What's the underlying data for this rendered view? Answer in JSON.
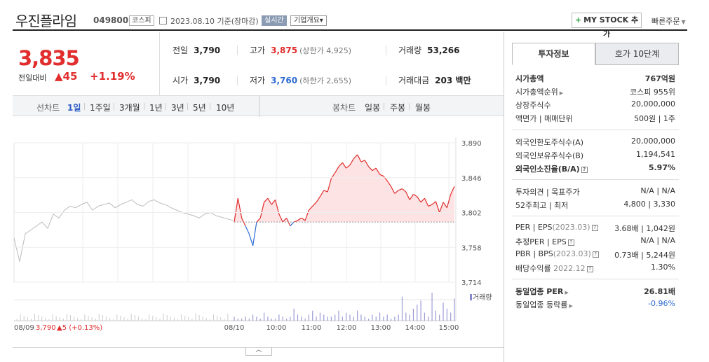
{
  "header": {
    "stock_name": "우진플라임",
    "stock_code": "049800",
    "market": "코스피",
    "date_label": "2023.08.10 기준(장마감)",
    "realtime_label": "실시간",
    "overview_label": "기업개요▾",
    "mystock_label": "MY STOCK 추가",
    "mystock_plus": "+",
    "quick_order_label": "빠른주문",
    "quick_order_caret": "▼"
  },
  "price": {
    "current": "3,835",
    "prev_label": "전일대비",
    "change": "▲45",
    "change_pct": "+1.19%"
  },
  "stats": {
    "prev_close_label": "전일",
    "prev_close": "3,790",
    "high_label": "고가",
    "high": "3,875",
    "upper_limit": "(상한가 4,925)",
    "volume_label": "거래량",
    "volume": "53,266",
    "open_label": "시가",
    "open": "3,790",
    "low_label": "저가",
    "low": "3,760",
    "lower_limit": "(하한가 2,655)",
    "amount_label": "거래대금",
    "amount": "203 백만"
  },
  "toolbar": {
    "line_label": "선차트",
    "periods": [
      "1일",
      "1주일",
      "3개월",
      "1년",
      "3년",
      "5년",
      "10년"
    ],
    "selected_period": "1일",
    "candle_label": "봉차트",
    "candle_periods": [
      "일봉",
      "주봉",
      "월봉"
    ]
  },
  "chart_data": {
    "type": "line",
    "ylabels": [
      "3,890",
      "3,846",
      "3,802",
      "3,758",
      "3,714"
    ],
    "ylim": [
      3714,
      3890
    ],
    "baseline": 3790,
    "xlabels": [
      "08/10",
      "10:00",
      "11:00",
      "12:00",
      "13:00",
      "14:00",
      "15:00"
    ],
    "prev_day_label": "08/09",
    "prev_day_price": "3,790",
    "prev_day_change": "▲5 (+0.13%)",
    "volume_label": "거래량",
    "prev_series_color": "#bbbbbb",
    "up_color": "#e12d2d",
    "down_color": "#2e6bd1",
    "prev_day_values": [
      3770,
      3740,
      3775,
      3780,
      3785,
      3790,
      3782,
      3800,
      3795,
      3805,
      3810,
      3808,
      3812,
      3815,
      3805,
      3810,
      3812,
      3814,
      3808,
      3812,
      3815,
      3818,
      3812,
      3810,
      3816,
      3818,
      3814,
      3812,
      3808,
      3805,
      3802,
      3800,
      3798,
      3795,
      3800,
      3802,
      3798,
      3796,
      3794,
      3792
    ],
    "today_values": [
      3790,
      3820,
      3795,
      3785,
      3775,
      3760,
      3790,
      3795,
      3815,
      3820,
      3812,
      3818,
      3800,
      3790,
      3795,
      3785,
      3790,
      3792,
      3795,
      3792,
      3805,
      3810,
      3815,
      3822,
      3830,
      3828,
      3845,
      3852,
      3860,
      3865,
      3858,
      3862,
      3870,
      3875,
      3866,
      3868,
      3860,
      3855,
      3858,
      3850,
      3848,
      3842,
      3835,
      3826,
      3830,
      3832,
      3828,
      3818,
      3825,
      3822,
      3815,
      3820,
      3810,
      3812,
      3816,
      3802,
      3815,
      3808,
      3825,
      3835
    ],
    "volume_values": [
      2,
      1,
      1,
      2,
      1,
      3,
      2,
      1,
      4,
      2,
      1,
      1,
      3,
      2,
      1,
      2,
      6,
      3,
      2,
      1,
      3,
      5,
      2,
      4,
      3,
      2,
      2,
      3,
      5,
      2,
      4,
      3,
      2,
      5,
      3,
      2,
      1,
      3,
      2,
      4,
      2,
      3,
      1,
      2,
      3,
      12,
      4,
      3,
      6,
      8,
      10,
      4,
      2,
      14,
      5,
      3,
      9,
      6,
      4,
      11
    ]
  },
  "right_panel": {
    "tab_invest": "투자정보",
    "tab_quote": "호가 10단계",
    "market_cap_label": "시가총액",
    "market_cap": "767억원",
    "market_cap_rank_label": "시가총액순위",
    "market_cap_rank": "코스피 955위",
    "shares_label": "상장주식수",
    "shares": "20,000,000",
    "par_label": "액면가 | 매매단위",
    "par": "500원 | 1주",
    "foreign_limit_label": "외국인한도주식수(A)",
    "foreign_limit": "20,000,000",
    "foreign_hold_label": "외국인보유주식수(B)",
    "foreign_hold": "1,194,541",
    "foreign_ratio_label": "외국인소진율(B/A)",
    "foreign_ratio": "5.97%",
    "opinion_label": "투자의견 | 목표주가",
    "opinion": "N/A | N/A",
    "week52_label": "52주최고 | 최저",
    "week52": "4,800 | 3,330",
    "per_label": "PER | EPS",
    "per_date": "(2023.03)",
    "per": "3.68배 | 1,042원",
    "est_per_label": "추정PER | EPS",
    "est_per": "N/A | N/A",
    "pbr_label": "PBR | BPS",
    "pbr_date": "(2023.03)",
    "pbr": "0.73배 | 5,244원",
    "div_label": "배당수익률",
    "div_date": "2022.12",
    "div": "1.30%",
    "sector_per_label": "동일업종 PER",
    "sector_per": "26.81배",
    "sector_chg_label": "동일업종 등락률",
    "sector_chg": "-0.96%"
  }
}
